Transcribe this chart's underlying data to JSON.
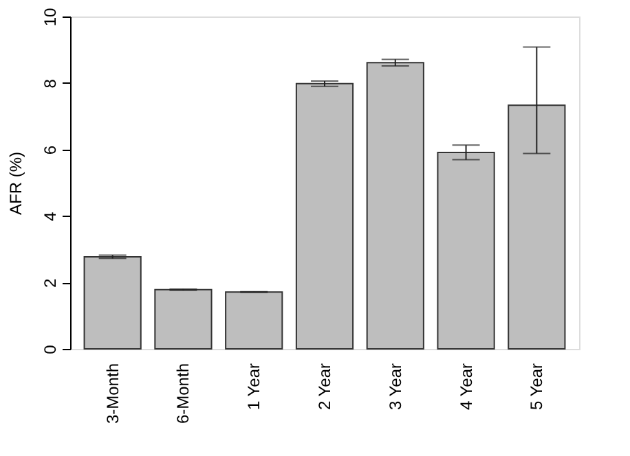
{
  "chart_data": {
    "type": "bar",
    "ylabel": "AFR (%)",
    "categories": [
      "3-Month",
      "6-Month",
      "1 Year",
      "2 Year",
      "3 Year",
      "4 Year",
      "5 Year"
    ],
    "values": [
      2.77,
      1.78,
      1.71,
      7.98,
      8.61,
      5.91,
      7.33
    ],
    "errors": [
      0.05,
      0.02,
      0.01,
      0.08,
      0.1,
      0.22,
      [
        5.88,
        9.08
      ]
    ],
    "color": "#bebebe",
    "ylim": [
      0,
      10
    ],
    "yticks": [
      0,
      2,
      4,
      6,
      8,
      10
    ],
    "grid": false
  }
}
